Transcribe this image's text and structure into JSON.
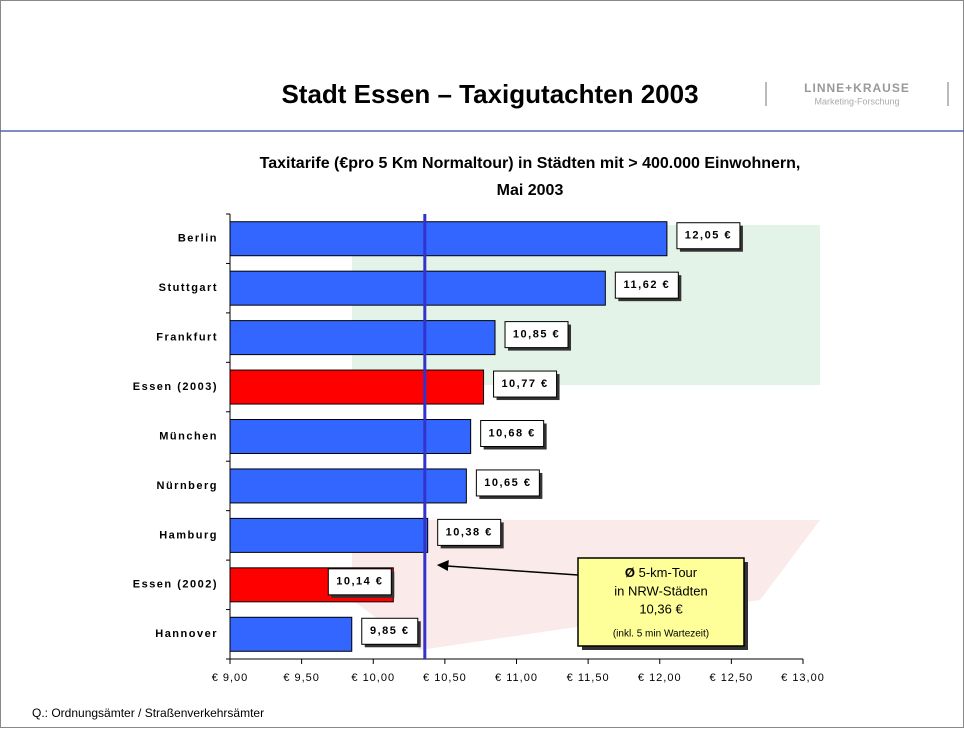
{
  "header": {
    "title": "Stadt Essen – Taxigutachten 2003",
    "logo_name": "LINNE+KRAUSE",
    "logo_sub": "Marketing-Forschung"
  },
  "chart_data": {
    "type": "hbar",
    "title": [
      "Taxitarife (€pro 5 Km Normaltour) in Städten mit > 400.000 Einwohnern,",
      "Mai 2003"
    ],
    "categories": [
      "Berlin",
      "Stuttgart",
      "Frankfurt",
      "Essen (2003)",
      "München",
      "Nürnberg",
      "Hamburg",
      "Essen (2002)",
      "Hannover"
    ],
    "values": [
      12.05,
      11.62,
      10.85,
      10.77,
      10.68,
      10.65,
      10.38,
      10.14,
      9.85
    ],
    "value_labels": [
      "12,05 €",
      "11,62 €",
      "10,85 €",
      "10,77 €",
      "10,68 €",
      "10,65 €",
      "10,38 €",
      "10,14 €",
      "9,85 €"
    ],
    "colors": [
      "#3366ff",
      "#3366ff",
      "#3366ff",
      "#ff0000",
      "#3366ff",
      "#3366ff",
      "#3366ff",
      "#ff0000",
      "#3366ff"
    ],
    "xlim": [
      9,
      13
    ],
    "xticks": [
      {
        "value": 9,
        "label": "€ 9,00"
      },
      {
        "value": 9.5,
        "label": "€ 9,50"
      },
      {
        "value": 10,
        "label": "€ 10,00"
      },
      {
        "value": 10.5,
        "label": "€ 10,50"
      },
      {
        "value": 11,
        "label": "€ 11,00"
      },
      {
        "value": 11.5,
        "label": "€ 11,50"
      },
      {
        "value": 12,
        "label": "€ 12,00"
      },
      {
        "value": 12.5,
        "label": "€ 12,50"
      },
      {
        "value": 13,
        "label": "€ 13,00"
      }
    ],
    "reference_line": {
      "value": 10.36,
      "color": "#3333cc"
    },
    "annotation": {
      "symbol": "Ø",
      "lines": [
        "5-km-Tour",
        "in NRW-Städten",
        "10,36 €"
      ],
      "note": "(inkl. 5 min Wartezeit)"
    }
  },
  "footer": {
    "source": "Q.: Ordnungsämter / Straßenverkehrsämter"
  }
}
